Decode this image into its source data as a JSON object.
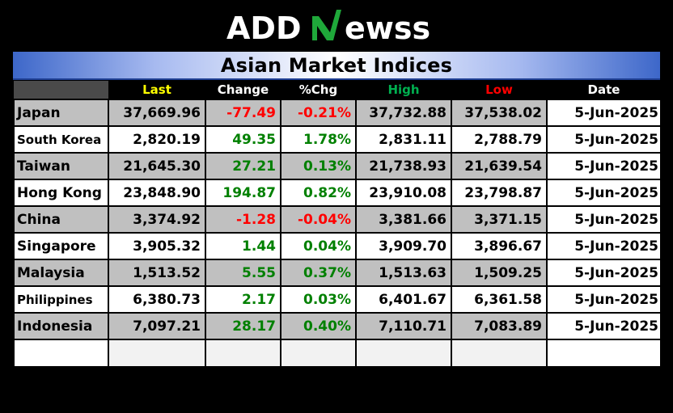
{
  "brand": {
    "logo_text": "ADDNEWSS",
    "logo_part1": "ADD",
    "logo_part2": "ewss"
  },
  "title": "Asian Market Indices",
  "colors": {
    "header_last": "#ffff00",
    "header_change": "#ffffff",
    "header_pctchg": "#ffffff",
    "header_high": "#00b050",
    "header_low": "#ff0000",
    "header_date": "#ffffff",
    "positive": "#008000",
    "negative": "#ff0000"
  },
  "columns": [
    "",
    "Last",
    "Change",
    "%Chg",
    "High",
    "Low",
    "Date"
  ],
  "rows": [
    {
      "country": "Japan",
      "last": "37,669.96",
      "change": "-77.49",
      "pct": "-0.21%",
      "high": "37,732.88",
      "low": "37,538.02",
      "date": "5-Jun-2025",
      "dir": "neg"
    },
    {
      "country": "South Korea",
      "last": "2,820.19",
      "change": "49.35",
      "pct": "1.78%",
      "high": "2,831.11",
      "low": "2,788.79",
      "date": "5-Jun-2025",
      "dir": "pos"
    },
    {
      "country": "Taiwan",
      "last": "21,645.30",
      "change": "27.21",
      "pct": "0.13%",
      "high": "21,738.93",
      "low": "21,639.54",
      "date": "5-Jun-2025",
      "dir": "pos"
    },
    {
      "country": "Hong Kong",
      "last": "23,848.90",
      "change": "194.87",
      "pct": "0.82%",
      "high": "23,910.08",
      "low": "23,798.87",
      "date": "5-Jun-2025",
      "dir": "pos"
    },
    {
      "country": "China",
      "last": "3,374.92",
      "change": "-1.28",
      "pct": "-0.04%",
      "high": "3,381.66",
      "low": "3,371.15",
      "date": "5-Jun-2025",
      "dir": "neg"
    },
    {
      "country": "Singapore",
      "last": "3,905.32",
      "change": "1.44",
      "pct": "0.04%",
      "high": "3,909.70",
      "low": "3,896.67",
      "date": "5-Jun-2025",
      "dir": "pos"
    },
    {
      "country": "Malaysia",
      "last": "1,513.52",
      "change": "5.55",
      "pct": "0.37%",
      "high": "1,513.63",
      "low": "1,509.25",
      "date": "5-Jun-2025",
      "dir": "pos"
    },
    {
      "country": "Philippines",
      "last": "6,380.73",
      "change": "2.17",
      "pct": "0.03%",
      "high": "6,401.67",
      "low": "6,361.58",
      "date": "5-Jun-2025",
      "dir": "pos"
    },
    {
      "country": "Indonesia",
      "last": "7,097.21",
      "change": "28.17",
      "pct": "0.40%",
      "high": "7,110.71",
      "low": "7,083.89",
      "date": "5-Jun-2025",
      "dir": "pos"
    }
  ]
}
